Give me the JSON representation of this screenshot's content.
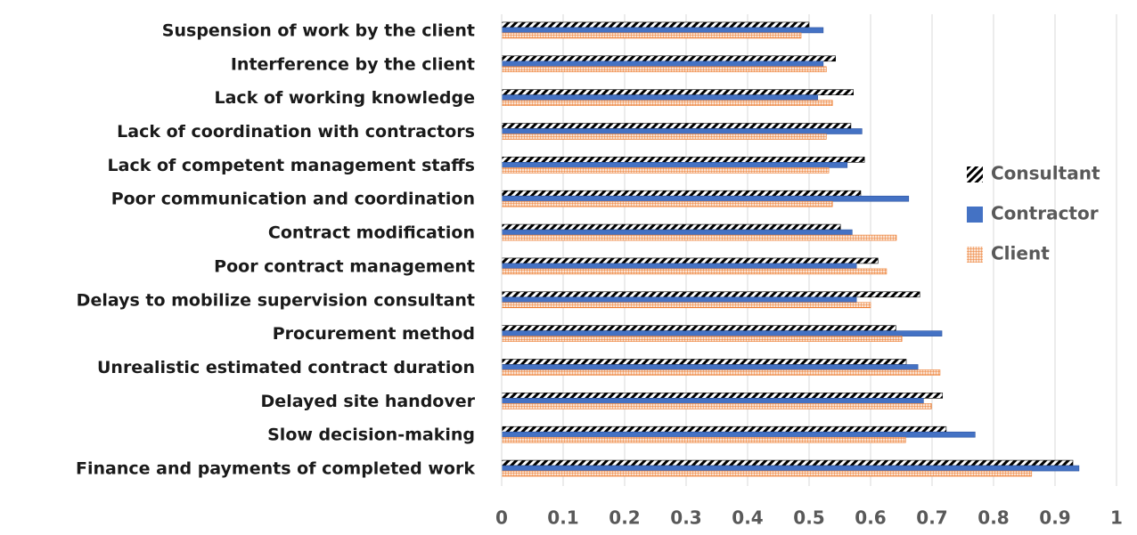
{
  "chart_data": {
    "type": "hbar",
    "categories": [
      "Suspension of work by the client",
      "Interference by the client",
      "Lack of working knowledge",
      "Lack of coordination with contractors",
      "Lack of competent management staffs",
      "Poor communication and coordination",
      "Contract modification",
      "Poor contract management",
      "Delays to mobilize supervision consultant",
      "Procurement method",
      "Unrealistic estimated contract duration",
      "Delayed site handover",
      "Slow decision-making",
      "Finance and payments of completed work"
    ],
    "series": [
      {
        "name": "Consultant",
        "color": "#000000",
        "values": [
          0.5,
          0.543,
          0.572,
          0.568,
          0.59,
          0.584,
          0.551,
          0.612,
          0.68,
          0.641,
          0.658,
          0.717,
          0.723,
          0.929
        ]
      },
      {
        "name": "Contractor",
        "color": "#4472c4",
        "values": [
          0.523,
          0.523,
          0.514,
          0.586,
          0.562,
          0.662,
          0.57,
          0.577,
          0.577,
          0.716,
          0.677,
          0.686,
          0.77,
          0.939
        ]
      },
      {
        "name": "Client",
        "color": "#ed7d31",
        "values": [
          0.487,
          0.528,
          0.538,
          0.528,
          0.532,
          0.538,
          0.642,
          0.626,
          0.6,
          0.651,
          0.713,
          0.699,
          0.657,
          0.862
        ]
      }
    ],
    "xlim": [
      0,
      1
    ],
    "xticks": [
      0,
      0.1,
      0.2,
      0.3,
      0.4,
      0.5,
      0.6,
      0.7,
      0.8,
      0.9,
      1
    ],
    "grid": true,
    "legend": "right"
  }
}
